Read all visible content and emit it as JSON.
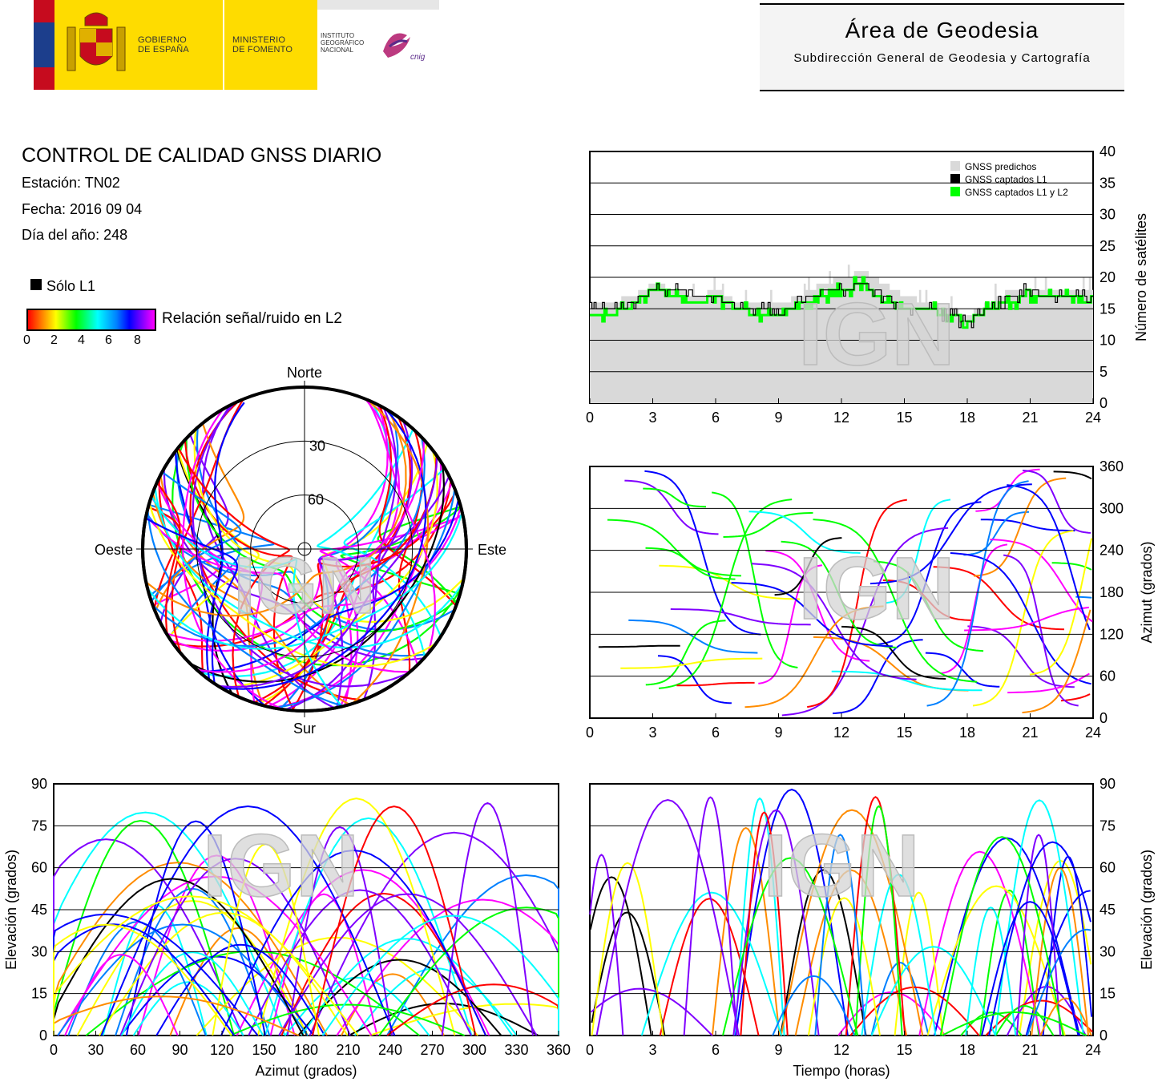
{
  "header": {
    "gobierno_label": "GOBIERNO\nDE ESPAÑA",
    "ministerio_label": "MINISTERIO\nDE FOMENTO",
    "instituto_label": "INSTITUTO\nGEOGRÁFICO\nNACIONAL",
    "cnig_label": "cnig",
    "area_title": "Área de Geodesia",
    "area_subtitle": "Subdirección General de Geodesia y Cartografía"
  },
  "info": {
    "title": "CONTROL DE CALIDAD GNSS DIARIO",
    "station": "Estación: TN02",
    "date": "Fecha: 2016 09 04",
    "day_of_year": "Día del año: 248",
    "l1_only": "Sólo L1",
    "snr_label": "Relación señal/ruido en L2",
    "snr_ticks": [
      "0",
      "2",
      "4",
      "6",
      "8"
    ]
  },
  "watermark": "IGN",
  "colors": {
    "snr_scale": [
      "#ff0000",
      "#ff8c00",
      "#ffff00",
      "#00ff00",
      "#00ffff",
      "#0080ff",
      "#0000ff",
      "#8000ff",
      "#ff00ff"
    ],
    "predicted": "#d9d9d9",
    "l1": "#000000",
    "l1l2": "#00ff00"
  },
  "chart_data": [
    {
      "id": "satellites",
      "type": "line",
      "ylabel": "Número de satélites",
      "xlim": [
        0,
        24
      ],
      "ylim": [
        0,
        40
      ],
      "xticks": [
        "0",
        "3",
        "6",
        "9",
        "12",
        "15",
        "18",
        "21",
        "24"
      ],
      "yticks": [
        "0",
        "5",
        "10",
        "15",
        "20",
        "25",
        "30",
        "35",
        "40"
      ],
      "legend": [
        "GNSS predichos",
        "GNSS captados L1",
        "GNSS captados L1 y L2"
      ],
      "legend_position": "top-right",
      "x": [
        0,
        1,
        2,
        3,
        4,
        5,
        6,
        7,
        8,
        9,
        10,
        11,
        12,
        13,
        14,
        15,
        16,
        17,
        18,
        19,
        20,
        21,
        22,
        23,
        24
      ],
      "series": [
        {
          "name": "GNSS predichos",
          "values": [
            16,
            16,
            17,
            19,
            18,
            17,
            18,
            16,
            16,
            16,
            17,
            19,
            20,
            21,
            19,
            17,
            16,
            15,
            14,
            16,
            18,
            18,
            18,
            18,
            18
          ]
        },
        {
          "name": "GNSS captados L1",
          "values": [
            15,
            15,
            16,
            18,
            18,
            17,
            17,
            15,
            15,
            14,
            16,
            18,
            18,
            19,
            17,
            15,
            15,
            14,
            13,
            15,
            17,
            18,
            17,
            17,
            17
          ]
        },
        {
          "name": "GNSS captados L1 y L2",
          "values": [
            14,
            14,
            16,
            18,
            17,
            16,
            17,
            15,
            14,
            14,
            16,
            17,
            18,
            19,
            16,
            15,
            15,
            14,
            13,
            15,
            16,
            17,
            17,
            17,
            16
          ]
        }
      ]
    },
    {
      "id": "skyplot",
      "type": "scatter",
      "cardinal": [
        "Norte",
        "Sur",
        "Este",
        "Oeste"
      ],
      "elevation_rings": [
        "30",
        "60"
      ]
    },
    {
      "id": "azimuth_time",
      "type": "scatter",
      "ylabel": "Azimut (grados)",
      "xlim": [
        0,
        24
      ],
      "ylim": [
        0,
        360
      ],
      "xticks": [
        "0",
        "3",
        "6",
        "9",
        "12",
        "15",
        "18",
        "21",
        "24"
      ],
      "yticks": [
        "0",
        "60",
        "120",
        "180",
        "240",
        "300",
        "360"
      ]
    },
    {
      "id": "elev_azimuth",
      "type": "scatter",
      "xlabel": "Azimut (grados)",
      "ylabel": "Elevación (grados)",
      "xlim": [
        0,
        360
      ],
      "ylim": [
        0,
        90
      ],
      "xticks": [
        "0",
        "30",
        "60",
        "90",
        "120",
        "150",
        "180",
        "210",
        "240",
        "270",
        "300",
        "330",
        "360"
      ],
      "yticks": [
        "0",
        "15",
        "30",
        "45",
        "60",
        "75",
        "90"
      ]
    },
    {
      "id": "elev_time",
      "type": "scatter",
      "xlabel": "Tiempo (horas)",
      "ylabel": "Elevación (grados)",
      "xlim": [
        0,
        24
      ],
      "ylim": [
        0,
        90
      ],
      "xticks": [
        "0",
        "3",
        "6",
        "9",
        "12",
        "15",
        "18",
        "21",
        "24"
      ],
      "yticks": [
        "0",
        "15",
        "30",
        "45",
        "60",
        "75",
        "90"
      ]
    }
  ]
}
